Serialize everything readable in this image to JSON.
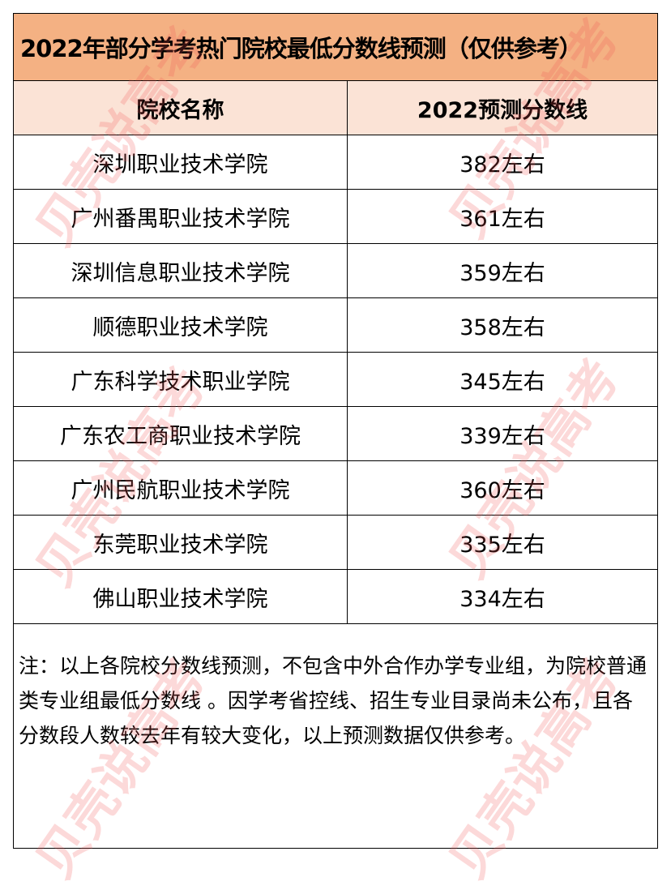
{
  "title": "2022年部分学考热门院校最低分数线预测（仅供参考）",
  "headers": [
    "院校名称",
    "2022预测分数线"
  ],
  "rows": [
    {
      "school": "深圳职业技术学院",
      "score": "382左右"
    },
    {
      "school": "广州番禺职业技术学院",
      "score": "361左右"
    },
    {
      "school": "深圳信息职业技术学院",
      "score": "359左右"
    },
    {
      "school": "顺德职业技术学院",
      "score": "358左右"
    },
    {
      "school": "广东科学技术职业学院",
      "score": "345左右"
    },
    {
      "school": "广东农工商职业技术学院",
      "score": "339左右"
    },
    {
      "school": "广州民航职业技术学院",
      "score": "360左右"
    },
    {
      "school": "东莞职业技术学院",
      "score": "335左右"
    },
    {
      "school": "佛山职业技术学院",
      "score": "334左右"
    }
  ],
  "note": "注：以上各院校分数线预测，不包含中外合作办学专业组，为院校普通类专业组最低分数线 。因学考省控线、招生专业目录尚未公布，且各分数段人数较去年有较大变化，以上预测数据仅供参考。",
  "watermark": "贝壳说高考",
  "colors": {
    "title_bg": "#f4b183",
    "header_bg": "#fbe3d6",
    "watermark": "#f05050"
  }
}
